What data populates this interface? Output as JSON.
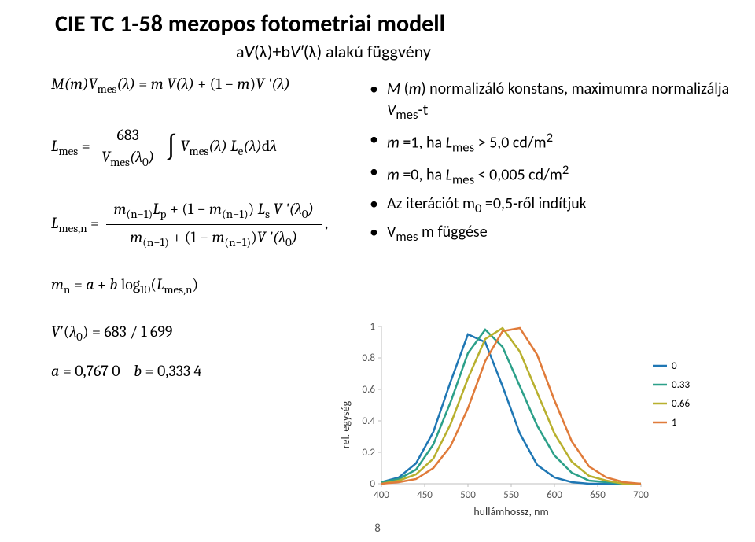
{
  "title": "CIE TC 1-58 mezopos fotometriai modell",
  "subtitle_html": "aV(λ)+bV′(λ) alakú függvény",
  "bullets": [
    "M (m) normalizáló konstans, maximumra normalizálja Vmes-t",
    "m =1, ha Lmes > 5,0 cd/m²",
    "m =0, ha Lmes < 0,005 cd/m²",
    "Az iterációt m₀ =0,5-ről indítjuk",
    "Vₘₑₛ m függése"
  ],
  "equations": {
    "eq1": "M(m)Vmes(λ) = m V(λ) + (1 − m)V′(λ)",
    "eq2_lhs": "Lmes",
    "eq2_num": "683",
    "eq2_den": "Vmes(λ₀)",
    "eq2_int": "∫ Vmes(λ) Le(λ) dλ",
    "eq3_lhs": "Lmes,n",
    "eq3_num": "m(n−1)Lp + (1 − m(n−1)) Ls V′(λ₀)",
    "eq3_den": "m(n−1) + (1 − m(n−1)) V′(λ₀)",
    "eq3_tail": ",",
    "eq4": "mn = a + b log₁₀(Lmes,n)",
    "eq5": "V′(λ₀) = 683 / 1 699",
    "eq6a": "a = 0,767 0",
    "eq6b": "b = 0,333 4"
  },
  "chart": {
    "type": "line",
    "xlabel": "hullámhossz, nm",
    "ylabel": "rel. egység",
    "xlim": [
      400,
      700
    ],
    "ylim": [
      0,
      1
    ],
    "xtick_step": 50,
    "ytick_step": 0.2,
    "background_color": "#ffffff",
    "axis_color": "#bfbfbf",
    "grid": false,
    "legend_position": "right",
    "series": [
      {
        "m": "0",
        "color": "#1f77b4",
        "x": [
          400,
          420,
          440,
          460,
          480,
          500,
          520,
          540,
          560,
          580,
          600,
          620,
          640,
          660,
          680,
          700
        ],
        "y": [
          0.01,
          0.04,
          0.13,
          0.33,
          0.65,
          0.95,
          0.9,
          0.62,
          0.32,
          0.12,
          0.04,
          0.01,
          0.0,
          0.0,
          0.0,
          0.0
        ]
      },
      {
        "m": "0.33",
        "color": "#2ca089",
        "x": [
          400,
          420,
          440,
          460,
          480,
          500,
          520,
          540,
          560,
          580,
          600,
          620,
          640,
          660,
          680,
          700
        ],
        "y": [
          0.01,
          0.03,
          0.09,
          0.25,
          0.52,
          0.83,
          0.98,
          0.87,
          0.62,
          0.37,
          0.18,
          0.07,
          0.02,
          0.01,
          0.0,
          0.0
        ]
      },
      {
        "m": "0.66",
        "color": "#b8b02e",
        "x": [
          400,
          420,
          440,
          460,
          480,
          500,
          520,
          540,
          560,
          580,
          600,
          620,
          640,
          660,
          680,
          700
        ],
        "y": [
          0.0,
          0.02,
          0.06,
          0.16,
          0.38,
          0.67,
          0.92,
          0.99,
          0.84,
          0.58,
          0.32,
          0.14,
          0.05,
          0.02,
          0.0,
          0.0
        ]
      },
      {
        "m": "1",
        "color": "#e07b3a",
        "x": [
          400,
          420,
          440,
          460,
          480,
          500,
          520,
          540,
          560,
          580,
          600,
          620,
          640,
          660,
          680,
          700
        ],
        "y": [
          0.0,
          0.01,
          0.03,
          0.1,
          0.24,
          0.48,
          0.78,
          0.97,
          0.99,
          0.82,
          0.53,
          0.27,
          0.11,
          0.04,
          0.01,
          0.0
        ]
      }
    ]
  },
  "page_number": "8"
}
